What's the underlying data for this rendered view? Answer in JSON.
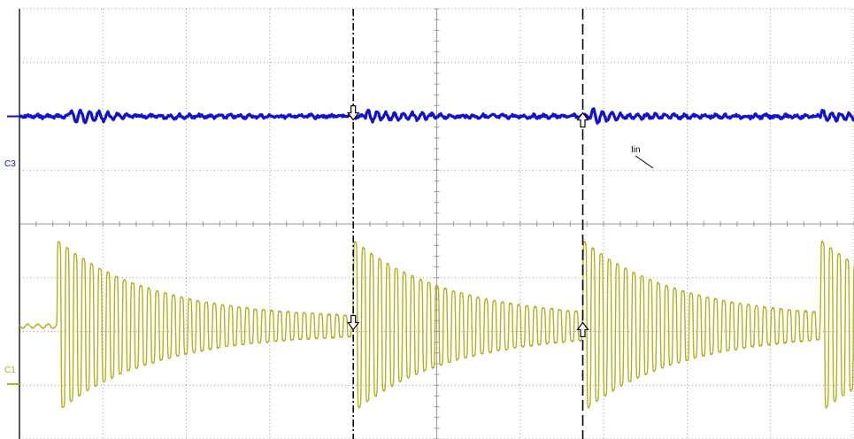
{
  "chart_data": {
    "type": "line",
    "title": "",
    "xlabel": "",
    "ylabel": "",
    "grid": true,
    "grid_divisions": {
      "x": 10,
      "y": 8
    },
    "series": [
      {
        "name": "Iin",
        "channel_label": "C3",
        "color": "#1010d0",
        "baseline_div": 2,
        "description_values": {
          "oscillation_amplitude_div": 0.12,
          "burst_start_div": [
            0.6,
            4.15,
            6.85,
            9.6
          ]
        }
      },
      {
        "channel_label": "C1",
        "color": "#b5b020",
        "baseline_div": 5.9,
        "description_values": {
          "burst_start_div": [
            0.45,
            4.0,
            6.75,
            9.6
          ],
          "peak_amplitude_div": 1.6,
          "idle_ripple_div": 0.04
        }
      }
    ],
    "cursors": [
      {
        "style": "dash-dot",
        "x_div": 4.0
      },
      {
        "style": "dashed",
        "x_div": 6.75
      }
    ],
    "markers": [
      {
        "channel": "C3",
        "x_div": 4.0,
        "direction": "down"
      },
      {
        "channel": "C3",
        "x_div": 6.75,
        "direction": "up"
      },
      {
        "channel": "C1",
        "x_div": 4.0,
        "direction": "down"
      },
      {
        "channel": "C1",
        "x_div": 6.75,
        "direction": "up"
      }
    ],
    "annotations": [
      {
        "text": "Iin",
        "series": "Iin"
      }
    ]
  }
}
